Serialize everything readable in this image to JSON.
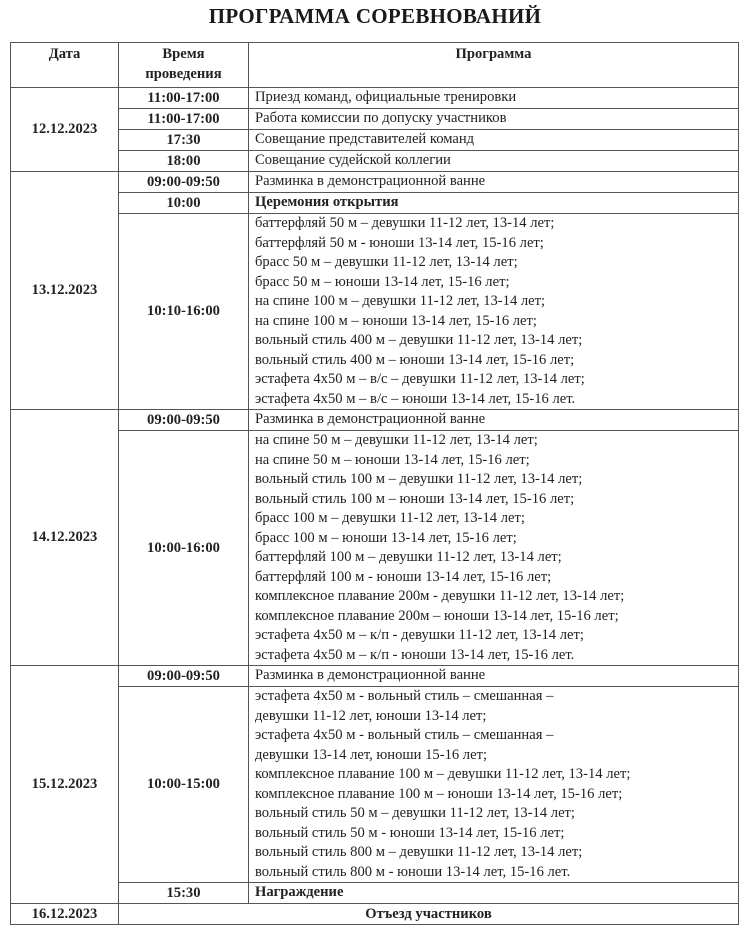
{
  "title": "ПРОГРАММА СОРЕВНОВАНИЙ",
  "headers": {
    "date": "Дата",
    "time_line1": "Время",
    "time_line2": "проведения",
    "program": "Программа"
  },
  "days": [
    {
      "date": "12.12.2023",
      "rows": [
        {
          "time": "11:00-17:00",
          "lines": [
            "Приезд команд, официальные тренировки"
          ]
        },
        {
          "time": "11:00-17:00",
          "lines": [
            "Работа комиссии по допуску участников"
          ]
        },
        {
          "time": "17:30",
          "lines": [
            "Совещание представителей команд"
          ]
        },
        {
          "time": "18:00",
          "lines": [
            "Совещание судейской коллегии"
          ]
        }
      ]
    },
    {
      "date": "13.12.2023",
      "rows": [
        {
          "time": "09:00-09:50",
          "lines": [
            "Разминка в демонстрационной ванне"
          ]
        },
        {
          "time": "10:00",
          "bold": true,
          "lines": [
            "Церемония открытия"
          ]
        },
        {
          "time": "10:10-16:00",
          "lines": [
            "баттерфляй 50 м – девушки 11-12 лет, 13-14 лет;",
            "баттерфляй 50 м - юноши 13-14 лет, 15-16 лет;",
            "брасс 50 м – девушки 11-12 лет, 13-14 лет;",
            "брасс 50 м – юноши 13-14 лет, 15-16 лет;",
            "на спине 100 м – девушки 11-12 лет, 13-14 лет;",
            "на спине 100 м – юноши 13-14 лет, 15-16 лет;",
            "вольный стиль 400 м – девушки 11-12 лет, 13-14 лет;",
            "вольный стиль 400 м – юноши 13-14 лет, 15-16 лет;",
            "эстафета 4х50 м – в/с – девушки 11-12 лет, 13-14 лет;",
            "эстафета 4х50 м – в/с – юноши 13-14 лет, 15-16 лет."
          ]
        }
      ]
    },
    {
      "date": "14.12.2023",
      "rows": [
        {
          "time": "09:00-09:50",
          "lines": [
            "Разминка в демонстрационной ванне"
          ]
        },
        {
          "time": "10:00-16:00",
          "lines": [
            "на спине 50 м – девушки 11-12 лет, 13-14 лет;",
            "на спине 50 м – юноши 13-14 лет, 15-16 лет;",
            "вольный стиль 100 м – девушки 11-12 лет, 13-14 лет;",
            "вольный стиль 100 м – юноши 13-14 лет, 15-16 лет;",
            "брасс 100 м – девушки 11-12 лет, 13-14 лет;",
            "брасс 100 м – юноши 13-14 лет, 15-16 лет;",
            "баттерфляй 100 м – девушки 11-12 лет, 13-14 лет;",
            "баттерфляй 100 м - юноши 13-14 лет, 15-16 лет;",
            "комплексное плавание 200м - девушки 11-12 лет, 13-14 лет;",
            "комплексное плавание 200м – юноши 13-14 лет, 15-16 лет;",
            "эстафета 4х50 м – к/п - девушки 11-12 лет, 13-14 лет;",
            "эстафета 4х50 м – к/п - юноши 13-14 лет, 15-16 лет."
          ]
        }
      ]
    },
    {
      "date": "15.12.2023",
      "rows": [
        {
          "time": "09:00-09:50",
          "lines": [
            "Разминка в демонстрационной ванне"
          ]
        },
        {
          "time": "10:00-15:00",
          "lines": [
            "эстафета 4х50 м - вольный стиль – смешанная –",
            "девушки 11-12 лет, юноши 13-14 лет;",
            "эстафета 4х50 м - вольный стиль – смешанная –",
            "девушки 13-14 лет, юноши 15-16 лет;",
            "комплексное плавание 100 м – девушки 11-12 лет, 13-14 лет;",
            "комплексное плавание 100 м – юноши 13-14 лет, 15-16 лет;",
            "вольный стиль 50 м – девушки 11-12 лет, 13-14 лет;",
            "вольный стиль 50 м - юноши 13-14 лет, 15-16 лет;",
            "вольный стиль 800 м – девушки 11-12 лет, 13-14 лет;",
            "вольный стиль 800 м - юноши 13-14 лет, 15-16 лет."
          ]
        },
        {
          "time": "15:30",
          "bold": true,
          "lines": [
            "Награждение"
          ]
        }
      ]
    }
  ],
  "last_day": {
    "date": "16.12.2023",
    "text": "Отъезд участников"
  }
}
